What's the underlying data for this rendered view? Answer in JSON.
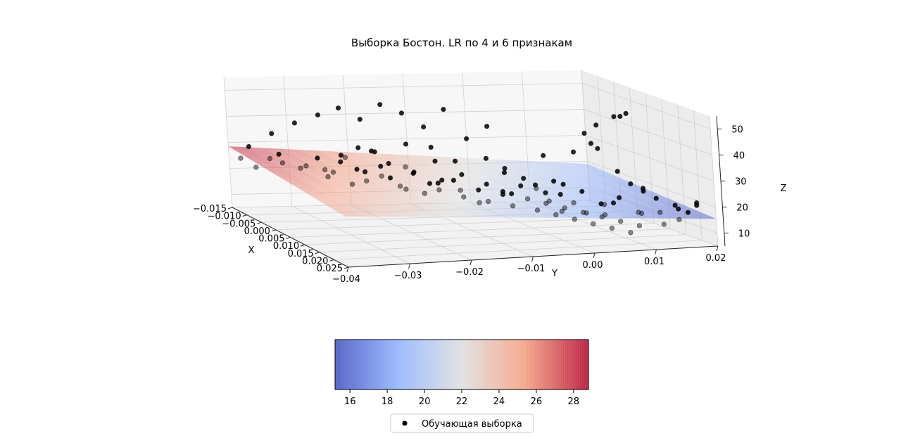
{
  "chart_data": {
    "type": "scatter",
    "projection": "3d",
    "title": "Выборка Бостон. LR по 4 и 6 признакам",
    "xlabel": "X",
    "ylabel": "Y",
    "zlabel": "Z",
    "x_ticks": [
      "−0.015",
      "−0.010",
      "−0.005",
      "0.000",
      "0.005",
      "0.010",
      "0.015",
      "0.020",
      "0.025"
    ],
    "y_ticks": [
      "−0.04",
      "−0.03",
      "−0.02",
      "−0.01",
      "0.00",
      "0.01",
      "0.02"
    ],
    "z_ticks": [
      "10",
      "20",
      "30",
      "40",
      "50"
    ],
    "xlim": [
      -0.015,
      0.025
    ],
    "ylim": [
      -0.04,
      0.02
    ],
    "zlim": [
      5,
      55
    ],
    "grid": true,
    "surface": {
      "kind": "regression plane",
      "colormap": "coolwarm",
      "alpha": 0.5,
      "z_at_corners": {
        "xmin_ymin": 28.5,
        "xmax_ymin": 24.5,
        "xmin_ymax": 19.0,
        "xmax_ymax": 15.5
      }
    },
    "colorbar": {
      "orientation": "horizontal",
      "range": [
        15.2,
        28.8
      ],
      "ticks": [
        "16",
        "18",
        "20",
        "22",
        "24",
        "26",
        "28"
      ]
    },
    "series": [
      {
        "name": "Обучающая выборка",
        "marker": "circle",
        "color": "#000000",
        "points": [
          {
            "x": -0.012,
            "y": -0.038,
            "z": 30
          },
          {
            "x": -0.01,
            "y": -0.035,
            "z": 36
          },
          {
            "x": -0.008,
            "y": -0.032,
            "z": 41
          },
          {
            "x": -0.006,
            "y": -0.029,
            "z": 45
          },
          {
            "x": -0.005,
            "y": -0.026,
            "z": 48
          },
          {
            "x": -0.004,
            "y": -0.023,
            "z": 44
          },
          {
            "x": -0.003,
            "y": -0.02,
            "z": 50
          },
          {
            "x": -0.002,
            "y": -0.017,
            "z": 47
          },
          {
            "x": -0.001,
            "y": -0.014,
            "z": 42
          },
          {
            "x": 0.0,
            "y": -0.011,
            "z": 49
          },
          {
            "x": 0.001,
            "y": -0.008,
            "z": 38
          },
          {
            "x": 0.002,
            "y": -0.005,
            "z": 43
          },
          {
            "x": -0.009,
            "y": -0.036,
            "z": 27
          },
          {
            "x": -0.007,
            "y": -0.031,
            "z": 25
          },
          {
            "x": -0.005,
            "y": -0.03,
            "z": 29
          },
          {
            "x": -0.004,
            "y": -0.028,
            "z": 24
          },
          {
            "x": -0.003,
            "y": -0.027,
            "z": 31
          },
          {
            "x": -0.002,
            "y": -0.025,
            "z": 26
          },
          {
            "x": -0.001,
            "y": -0.024,
            "z": 22
          },
          {
            "x": 0.0,
            "y": -0.022,
            "z": 28
          },
          {
            "x": 0.001,
            "y": -0.021,
            "z": 24
          },
          {
            "x": 0.002,
            "y": -0.019,
            "z": 20
          },
          {
            "x": 0.003,
            "y": -0.018,
            "z": 27
          },
          {
            "x": 0.004,
            "y": -0.016,
            "z": 23
          },
          {
            "x": 0.005,
            "y": -0.015,
            "z": 21
          },
          {
            "x": 0.006,
            "y": -0.013,
            "z": 25
          },
          {
            "x": 0.007,
            "y": -0.012,
            "z": 19
          },
          {
            "x": 0.008,
            "y": -0.01,
            "z": 22
          },
          {
            "x": 0.009,
            "y": -0.009,
            "z": 18
          },
          {
            "x": 0.01,
            "y": -0.007,
            "z": 21
          },
          {
            "x": 0.011,
            "y": -0.006,
            "z": 17
          },
          {
            "x": 0.012,
            "y": -0.004,
            "z": 20
          },
          {
            "x": 0.013,
            "y": -0.003,
            "z": 16
          },
          {
            "x": 0.014,
            "y": -0.002,
            "z": 19
          },
          {
            "x": 0.015,
            "y": -0.001,
            "z": 15
          },
          {
            "x": 0.016,
            "y": 0.0,
            "z": 18
          },
          {
            "x": 0.017,
            "y": 0.001,
            "z": 14
          },
          {
            "x": 0.018,
            "y": 0.002,
            "z": 17
          },
          {
            "x": 0.019,
            "y": 0.003,
            "z": 13
          },
          {
            "x": 0.02,
            "y": 0.004,
            "z": 16
          },
          {
            "x": 0.021,
            "y": 0.005,
            "z": 12
          },
          {
            "x": 0.022,
            "y": 0.006,
            "z": 15
          },
          {
            "x": 0.023,
            "y": 0.007,
            "z": 11
          },
          {
            "x": 0.024,
            "y": 0.008,
            "z": 14
          },
          {
            "x": -0.011,
            "y": -0.033,
            "z": 24
          },
          {
            "x": -0.008,
            "y": -0.027,
            "z": 20
          },
          {
            "x": -0.006,
            "y": -0.024,
            "z": 18
          },
          {
            "x": -0.004,
            "y": -0.02,
            "z": 22
          },
          {
            "x": -0.002,
            "y": -0.018,
            "z": 19
          },
          {
            "x": 0.0,
            "y": -0.015,
            "z": 17
          },
          {
            "x": 0.002,
            "y": -0.013,
            "z": 23
          },
          {
            "x": 0.004,
            "y": -0.011,
            "z": 20
          },
          {
            "x": 0.006,
            "y": -0.009,
            "z": 16
          },
          {
            "x": 0.008,
            "y": -0.006,
            "z": 21
          },
          {
            "x": 0.01,
            "y": -0.004,
            "z": 24
          },
          {
            "x": 0.012,
            "y": -0.001,
            "z": 22
          },
          {
            "x": 0.014,
            "y": 0.001,
            "z": 26
          },
          {
            "x": 0.016,
            "y": 0.003,
            "z": 24
          },
          {
            "x": 0.018,
            "y": 0.005,
            "z": 20
          },
          {
            "x": 0.02,
            "y": 0.007,
            "z": 23
          },
          {
            "x": 0.003,
            "y": -0.03,
            "z": 32
          },
          {
            "x": 0.005,
            "y": -0.027,
            "z": 29
          },
          {
            "x": 0.007,
            "y": -0.024,
            "z": 33
          },
          {
            "x": 0.009,
            "y": -0.021,
            "z": 30
          },
          {
            "x": 0.011,
            "y": -0.018,
            "z": 27
          },
          {
            "x": 0.013,
            "y": -0.015,
            "z": 31
          },
          {
            "x": 0.015,
            "y": -0.012,
            "z": 28
          },
          {
            "x": 0.017,
            "y": -0.009,
            "z": 25
          },
          {
            "x": 0.019,
            "y": -0.006,
            "z": 29
          },
          {
            "x": 0.021,
            "y": -0.003,
            "z": 26
          },
          {
            "x": -0.013,
            "y": -0.039,
            "z": 25
          },
          {
            "x": -0.012,
            "y": -0.037,
            "z": 22
          },
          {
            "x": -0.01,
            "y": -0.034,
            "z": 28
          },
          {
            "x": -0.009,
            "y": -0.031,
            "z": 23
          },
          {
            "x": 0.012,
            "y": 0.012,
            "z": 50
          },
          {
            "x": 0.01,
            "y": 0.014,
            "z": 50
          },
          {
            "x": 0.008,
            "y": 0.013,
            "z": 48
          },
          {
            "x": 0.006,
            "y": 0.011,
            "z": 44
          },
          {
            "x": 0.004,
            "y": 0.01,
            "z": 40
          },
          {
            "x": 0.002,
            "y": 0.012,
            "z": 35
          },
          {
            "x": 0.014,
            "y": 0.01,
            "z": 30
          },
          {
            "x": 0.016,
            "y": 0.011,
            "z": 26
          },
          {
            "x": 0.018,
            "y": 0.012,
            "z": 24
          },
          {
            "x": 0.02,
            "y": 0.013,
            "z": 22
          },
          {
            "x": 0.022,
            "y": 0.015,
            "z": 20
          },
          {
            "x": 0.024,
            "y": 0.016,
            "z": 18
          },
          {
            "x": 0.023,
            "y": 0.018,
            "z": 21
          },
          {
            "x": 0.021,
            "y": 0.019,
            "z": 19
          },
          {
            "x": 0.019,
            "y": 0.017,
            "z": 17
          },
          {
            "x": 0.025,
            "y": 0.014,
            "z": 16
          },
          {
            "x": 0.017,
            "y": 0.015,
            "z": 15
          },
          {
            "x": 0.015,
            "y": 0.013,
            "z": 14
          },
          {
            "x": 0.013,
            "y": 0.008,
            "z": 13
          },
          {
            "x": 0.011,
            "y": 0.009,
            "z": 16
          },
          {
            "x": 0.009,
            "y": 0.007,
            "z": 12
          },
          {
            "x": 0.007,
            "y": 0.006,
            "z": 15
          },
          {
            "x": 0.005,
            "y": 0.005,
            "z": 11
          },
          {
            "x": 0.003,
            "y": 0.004,
            "z": 14
          },
          {
            "x": 0.001,
            "y": 0.003,
            "z": 18
          },
          {
            "x": -0.001,
            "y": 0.002,
            "z": 21
          },
          {
            "x": -0.003,
            "y": 0.0,
            "z": 24
          },
          {
            "x": -0.005,
            "y": -0.002,
            "z": 27
          },
          {
            "x": 0.0,
            "y": 0.005,
            "z": 30
          },
          {
            "x": 0.004,
            "y": 0.008,
            "z": 33
          },
          {
            "x": 0.008,
            "y": 0.01,
            "z": 36
          },
          {
            "x": 0.012,
            "y": 0.015,
            "z": 22
          },
          {
            "x": 0.016,
            "y": 0.008,
            "z": 19
          },
          {
            "x": 0.02,
            "y": 0.01,
            "z": 17
          },
          {
            "x": 0.024,
            "y": 0.012,
            "z": 14
          },
          {
            "x": -0.006,
            "y": -0.01,
            "z": 26
          },
          {
            "x": -0.008,
            "y": -0.014,
            "z": 23
          },
          {
            "x": -0.01,
            "y": -0.018,
            "z": 28
          },
          {
            "x": -0.012,
            "y": -0.022,
            "z": 25
          },
          {
            "x": -0.011,
            "y": -0.026,
            "z": 21
          },
          {
            "x": -0.007,
            "y": -0.02,
            "z": 30
          },
          {
            "x": -0.003,
            "y": -0.012,
            "z": 33
          },
          {
            "x": 0.001,
            "y": -0.026,
            "z": 36
          },
          {
            "x": 0.005,
            "y": -0.02,
            "z": 39
          },
          {
            "x": 0.009,
            "y": -0.014,
            "z": 34
          },
          {
            "x": 0.013,
            "y": -0.008,
            "z": 31
          },
          {
            "x": 0.017,
            "y": -0.002,
            "z": 29
          }
        ]
      }
    ],
    "legend": {
      "entries": [
        "Обучающая выборка"
      ],
      "position": "bottom-center"
    }
  }
}
